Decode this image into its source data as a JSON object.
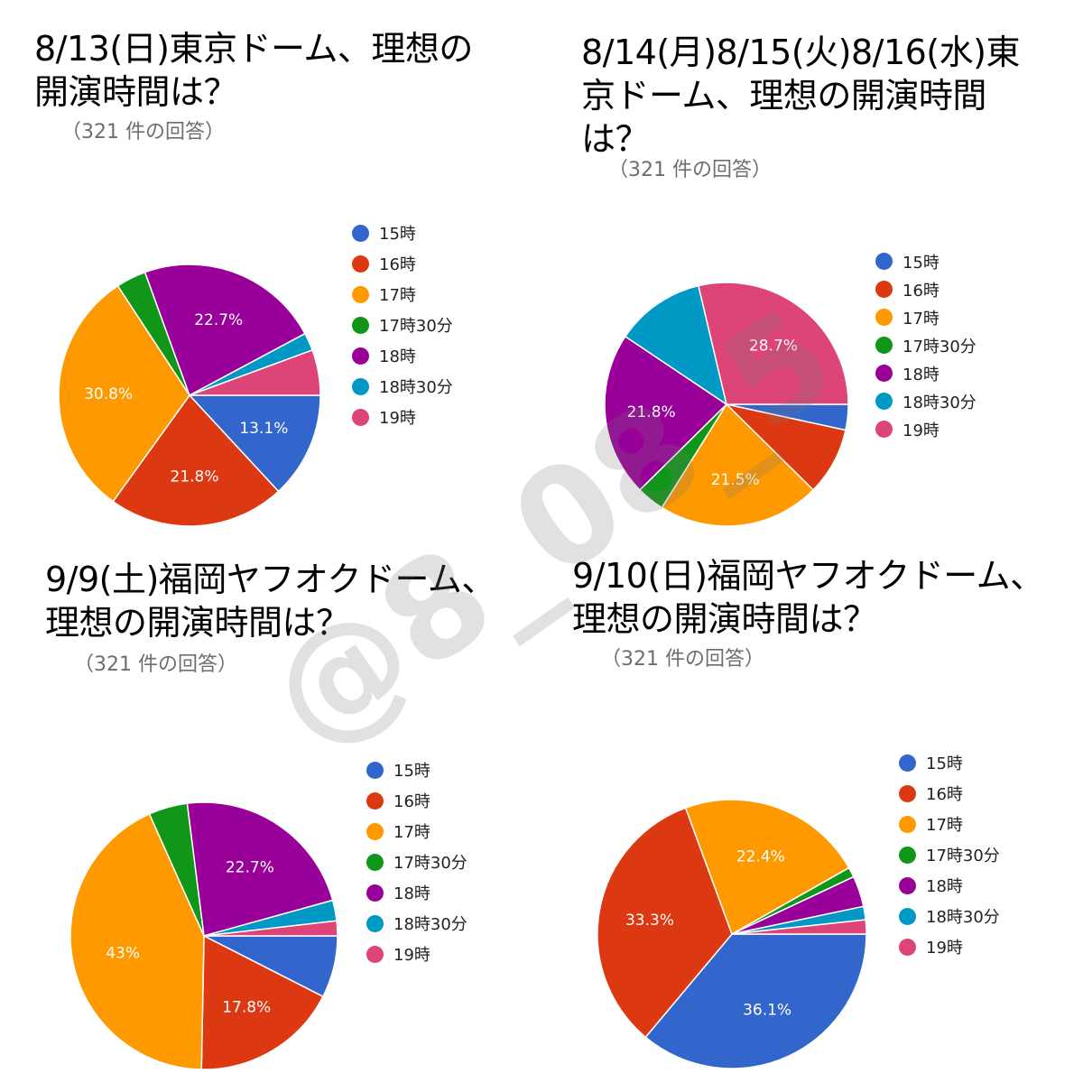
{
  "legend_items": [
    {
      "label": "15時",
      "color": "#3366cc"
    },
    {
      "label": "16時",
      "color": "#dc3912"
    },
    {
      "label": "17時",
      "color": "#ff9900"
    },
    {
      "label": "17時30分",
      "color": "#109618"
    },
    {
      "label": "18時",
      "color": "#990099"
    },
    {
      "label": "18時30分",
      "color": "#0099c6"
    },
    {
      "label": "19時",
      "color": "#dd4477"
    }
  ],
  "watermark": "@8_08_5",
  "chart_data": [
    {
      "type": "pie",
      "title": "8/13(日)東京ドーム、理想の開演時間は？",
      "response_count": "（321 件の回答）",
      "categories": [
        "15時",
        "16時",
        "17時",
        "17時30分",
        "18時",
        "18時30分",
        "19時"
      ],
      "values": [
        13.1,
        21.8,
        30.8,
        3.7,
        22.7,
        2.2,
        5.6
      ],
      "labels": [
        "13.1%",
        "21.8%",
        "30.8%",
        "",
        "22.7%",
        "",
        ""
      ],
      "legend": "right"
    },
    {
      "type": "pie",
      "title": "8/14(月)8/15(火)8/16(水)東京ドーム、理想の開演時間は？",
      "response_count": "（321 件の回答）",
      "categories": [
        "15時",
        "16時",
        "17時",
        "17時30分",
        "18時",
        "18時30分",
        "19時"
      ],
      "values": [
        3.4,
        9.0,
        21.5,
        3.7,
        21.8,
        11.9,
        28.7
      ],
      "labels": [
        "",
        "",
        "21.5%",
        "",
        "21.8%",
        "",
        "28.7%"
      ],
      "legend": "right"
    },
    {
      "type": "pie",
      "title": "9/9(土)福岡ヤフオクドーム、理想の開演時間は？",
      "response_count": "（321 件の回答）",
      "categories": [
        "15時",
        "16時",
        "17時",
        "17時30分",
        "18時",
        "18時30分",
        "19時"
      ],
      "values": [
        7.5,
        17.8,
        43,
        4.7,
        22.7,
        2.5,
        1.8
      ],
      "labels": [
        "",
        "17.8%",
        "43%",
        "",
        "22.7%",
        "",
        ""
      ],
      "legend": "right"
    },
    {
      "type": "pie",
      "title": "9/10(日)福岡ヤフオクドーム、理想の開演時間は？",
      "response_count": "（321 件の回答）",
      "categories": [
        "15時",
        "16時",
        "17時",
        "17時30分",
        "18時",
        "18時30分",
        "19時"
      ],
      "values": [
        36.1,
        33.3,
        22.4,
        1.2,
        3.7,
        1.6,
        1.7
      ],
      "labels": [
        "36.1%",
        "33.3%",
        "22.4%",
        "",
        "",
        "",
        ""
      ],
      "legend": "right"
    }
  ]
}
